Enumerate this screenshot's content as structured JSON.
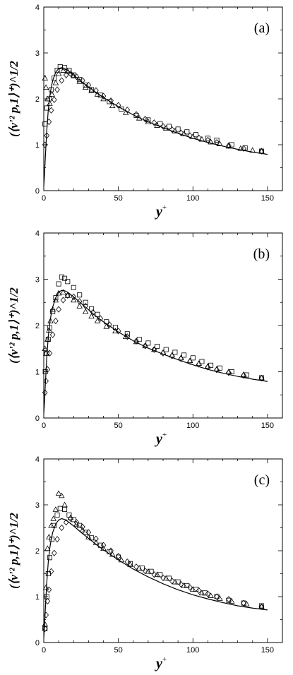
{
  "chart_data": [
    {
      "type": "scatter",
      "panel_label": "(a)",
      "xlim": [
        0,
        160
      ],
      "ylim": [
        0,
        4
      ],
      "x_ticks": [
        0,
        50,
        100,
        150
      ],
      "y_ticks": [
        0,
        1,
        2,
        3,
        4
      ],
      "x_tick_labels": [
        "0",
        "50",
        "100",
        "150"
      ],
      "y_tick_labels": [
        "0",
        "1",
        "2",
        "3",
        "4"
      ],
      "xlabel": "y",
      "xlabel_sup": "+",
      "ylabel": "(⟨v'² p,1⟩⁺)^1/2",
      "series": [
        {
          "marker": "triangle",
          "x": [
            0.8,
            1.5,
            2.5,
            4,
            5.5,
            8,
            10,
            13,
            16,
            20,
            24,
            28,
            32,
            36,
            40,
            46,
            55,
            64,
            70,
            76,
            82,
            88,
            94,
            100,
            106,
            112,
            118,
            124,
            132,
            140,
            146
          ],
          "y": [
            2.45,
            2.25,
            2.0,
            1.9,
            2.1,
            2.35,
            2.55,
            2.62,
            2.6,
            2.5,
            2.38,
            2.25,
            2.18,
            2.1,
            2.0,
            1.85,
            1.7,
            1.58,
            1.5,
            1.42,
            1.36,
            1.3,
            1.24,
            1.18,
            1.12,
            1.06,
            1.02,
            0.97,
            0.92,
            0.88,
            0.86
          ]
        },
        {
          "marker": "square",
          "x": [
            0.8,
            2,
            3.5,
            5,
            7,
            9,
            11,
            14,
            17,
            20,
            24,
            28,
            32,
            38,
            44,
            52,
            62,
            70,
            78,
            84,
            90,
            96,
            102,
            110,
            116,
            126,
            135,
            146
          ],
          "y": [
            1.45,
            1.8,
            2.0,
            2.2,
            2.45,
            2.62,
            2.7,
            2.68,
            2.62,
            2.52,
            2.42,
            2.3,
            2.2,
            2.08,
            1.94,
            1.78,
            1.64,
            1.54,
            1.46,
            1.4,
            1.34,
            1.28,
            1.22,
            1.14,
            1.1,
            1.0,
            0.93,
            0.86
          ]
        },
        {
          "marker": "diamond",
          "x": [
            0.8,
            2,
            3.5,
            5,
            7,
            9,
            12,
            15,
            18,
            22,
            26,
            30,
            35,
            40,
            45,
            50,
            56,
            62,
            68,
            74,
            80,
            86,
            92,
            98,
            104,
            110,
            116,
            124,
            134,
            146
          ],
          "y": [
            1.0,
            1.2,
            1.5,
            1.75,
            1.98,
            2.2,
            2.4,
            2.52,
            2.55,
            2.48,
            2.4,
            2.3,
            2.18,
            2.06,
            1.96,
            1.86,
            1.76,
            1.66,
            1.56,
            1.48,
            1.4,
            1.33,
            1.26,
            1.2,
            1.15,
            1.1,
            1.05,
            0.98,
            0.92,
            0.86
          ]
        }
      ],
      "curve": {
        "x": [
          0,
          0.5,
          1,
          2,
          3,
          4,
          5,
          6,
          8,
          10,
          12,
          14,
          16,
          18,
          20,
          25,
          30,
          35,
          40,
          50,
          60,
          70,
          80,
          90,
          100,
          110,
          120,
          130,
          140,
          150
        ],
        "y": [
          0.1,
          0.35,
          0.7,
          1.3,
          1.75,
          2.05,
          2.25,
          2.4,
          2.58,
          2.66,
          2.68,
          2.66,
          2.62,
          2.57,
          2.52,
          2.38,
          2.26,
          2.14,
          2.03,
          1.83,
          1.65,
          1.5,
          1.37,
          1.25,
          1.14,
          1.05,
          0.97,
          0.9,
          0.84,
          0.79
        ]
      }
    },
    {
      "type": "scatter",
      "panel_label": "(b)",
      "xlim": [
        0,
        160
      ],
      "ylim": [
        0,
        4
      ],
      "x_ticks": [
        0,
        50,
        100,
        150
      ],
      "y_ticks": [
        0,
        1,
        2,
        3,
        4
      ],
      "x_tick_labels": [
        "0",
        "50",
        "100",
        "150"
      ],
      "y_tick_labels": [
        "0",
        "1",
        "2",
        "3",
        "4"
      ],
      "xlabel": "y",
      "xlabel_sup": "+",
      "ylabel": "(⟨v'² p,1⟩⁺)^1/2",
      "series": [
        {
          "marker": "triangle",
          "x": [
            0.8,
            1.5,
            2.5,
            3.5,
            4.5,
            6,
            8,
            10,
            13,
            16,
            20,
            24,
            28,
            32,
            36,
            42,
            48,
            55,
            62,
            68,
            74,
            80,
            86,
            92,
            98,
            104,
            110,
            116,
            124,
            134,
            146
          ],
          "y": [
            1.5,
            1.4,
            1.7,
            1.9,
            2.1,
            2.35,
            2.55,
            2.7,
            2.72,
            2.65,
            2.55,
            2.42,
            2.3,
            2.2,
            2.1,
            1.98,
            1.88,
            1.76,
            1.65,
            1.56,
            1.48,
            1.42,
            1.36,
            1.3,
            1.24,
            1.18,
            1.12,
            1.06,
            1.0,
            0.94,
            0.87
          ]
        },
        {
          "marker": "square",
          "x": [
            1,
            2,
            3,
            4,
            6,
            8,
            10,
            12,
            14,
            16,
            20,
            24,
            28,
            32,
            36,
            42,
            48,
            56,
            64,
            70,
            76,
            82,
            88,
            94,
            100,
            106,
            112,
            118,
            126,
            136,
            146
          ],
          "y": [
            1.0,
            1.4,
            1.7,
            1.95,
            2.3,
            2.6,
            2.9,
            3.05,
            3.02,
            2.95,
            2.82,
            2.66,
            2.5,
            2.36,
            2.24,
            2.08,
            1.96,
            1.82,
            1.7,
            1.62,
            1.55,
            1.48,
            1.42,
            1.36,
            1.3,
            1.22,
            1.14,
            1.08,
            1.0,
            0.93,
            0.87
          ]
        },
        {
          "marker": "diamond",
          "x": [
            0.8,
            1.5,
            2.5,
            4,
            6,
            8,
            10,
            13,
            16,
            20,
            24,
            28,
            33,
            38,
            44,
            50,
            56,
            62,
            68,
            74,
            80,
            86,
            92,
            98,
            104,
            110,
            116,
            124,
            134,
            146
          ],
          "y": [
            0.55,
            0.8,
            1.05,
            1.4,
            1.8,
            2.1,
            2.35,
            2.55,
            2.65,
            2.62,
            2.52,
            2.42,
            2.28,
            2.15,
            2.02,
            1.88,
            1.76,
            1.66,
            1.56,
            1.48,
            1.4,
            1.34,
            1.28,
            1.22,
            1.16,
            1.1,
            1.04,
            0.98,
            0.92,
            0.86
          ]
        }
      ],
      "curve": {
        "x": [
          0,
          0.5,
          1,
          2,
          3,
          4,
          5,
          6,
          8,
          10,
          12,
          14,
          16,
          18,
          20,
          25,
          30,
          35,
          40,
          50,
          60,
          70,
          80,
          90,
          100,
          110,
          120,
          130,
          140,
          150
        ],
        "y": [
          0.1,
          0.35,
          0.7,
          1.3,
          1.75,
          2.05,
          2.25,
          2.4,
          2.6,
          2.72,
          2.76,
          2.75,
          2.72,
          2.67,
          2.62,
          2.48,
          2.34,
          2.2,
          2.08,
          1.86,
          1.67,
          1.51,
          1.38,
          1.26,
          1.15,
          1.05,
          0.97,
          0.9,
          0.84,
          0.79
        ]
      }
    },
    {
      "type": "scatter",
      "panel_label": "(c)",
      "xlim": [
        0,
        160
      ],
      "ylim": [
        0,
        4
      ],
      "x_ticks": [
        0,
        50,
        100,
        150
      ],
      "y_ticks": [
        0,
        1,
        2,
        3,
        4
      ],
      "x_tick_labels": [
        "0",
        "50",
        "100",
        "150"
      ],
      "y_tick_labels": [
        "0",
        "1",
        "2",
        "3",
        "4"
      ],
      "xlabel": "y",
      "xlabel_sup": "+",
      "ylabel": "(⟨v'² p,1⟩⁺)^1/2",
      "series": [
        {
          "marker": "triangle",
          "x": [
            0.8,
            1.5,
            2.5,
            3.5,
            5,
            6.5,
            8,
            10,
            12,
            14,
            18,
            22,
            26,
            30,
            35,
            40,
            46,
            52,
            58,
            64,
            70,
            76,
            82,
            88,
            94,
            100,
            106,
            112,
            118,
            126,
            136,
            146
          ],
          "y": [
            0.4,
            1.2,
            2.05,
            2.3,
            2.55,
            2.7,
            2.9,
            3.25,
            3.2,
            3.0,
            2.72,
            2.58,
            2.45,
            2.3,
            2.18,
            2.05,
            1.92,
            1.8,
            1.7,
            1.62,
            1.55,
            1.48,
            1.4,
            1.32,
            1.24,
            1.16,
            1.08,
            1.02,
            0.96,
            0.9,
            0.84,
            0.78
          ]
        },
        {
          "marker": "square",
          "x": [
            0.8,
            2,
            3,
            4,
            5.5,
            7,
            9,
            11,
            14,
            17,
            20,
            24,
            28,
            32,
            38,
            44,
            50,
            58,
            66,
            72,
            78,
            84,
            90,
            96,
            102,
            108,
            116,
            124,
            134,
            146
          ],
          "y": [
            0.3,
            1.0,
            1.5,
            1.85,
            2.25,
            2.55,
            2.78,
            2.92,
            2.9,
            2.78,
            2.68,
            2.55,
            2.4,
            2.28,
            2.12,
            1.98,
            1.86,
            1.72,
            1.62,
            1.55,
            1.48,
            1.4,
            1.32,
            1.24,
            1.16,
            1.08,
            1.0,
            0.92,
            0.86,
            0.8
          ]
        },
        {
          "marker": "diamond",
          "x": [
            0.8,
            1.5,
            2.5,
            3.5,
            5,
            7,
            9,
            12,
            15,
            18,
            22,
            26,
            30,
            35,
            40,
            45,
            50,
            56,
            62,
            68,
            74,
            80,
            86,
            92,
            98,
            104,
            110,
            116,
            124,
            134,
            146
          ],
          "y": [
            0.3,
            0.6,
            0.9,
            1.15,
            1.55,
            1.95,
            2.25,
            2.5,
            2.62,
            2.7,
            2.62,
            2.52,
            2.4,
            2.26,
            2.12,
            2.0,
            1.88,
            1.76,
            1.65,
            1.56,
            1.48,
            1.41,
            1.34,
            1.27,
            1.2,
            1.13,
            1.06,
            1.0,
            0.94,
            0.86,
            0.78
          ]
        }
      ],
      "curve": {
        "x": [
          0,
          0.5,
          1,
          2,
          3,
          4,
          5,
          6,
          8,
          10,
          12,
          14,
          16,
          18,
          20,
          25,
          30,
          35,
          40,
          50,
          60,
          70,
          80,
          90,
          100,
          110,
          120,
          130,
          140,
          150
        ],
        "y": [
          0.1,
          0.35,
          0.7,
          1.3,
          1.75,
          2.05,
          2.25,
          2.4,
          2.58,
          2.67,
          2.7,
          2.68,
          2.64,
          2.59,
          2.54,
          2.4,
          2.27,
          2.14,
          2.02,
          1.8,
          1.6,
          1.43,
          1.28,
          1.15,
          1.04,
          0.95,
          0.87,
          0.8,
          0.75,
          0.71
        ]
      }
    }
  ]
}
